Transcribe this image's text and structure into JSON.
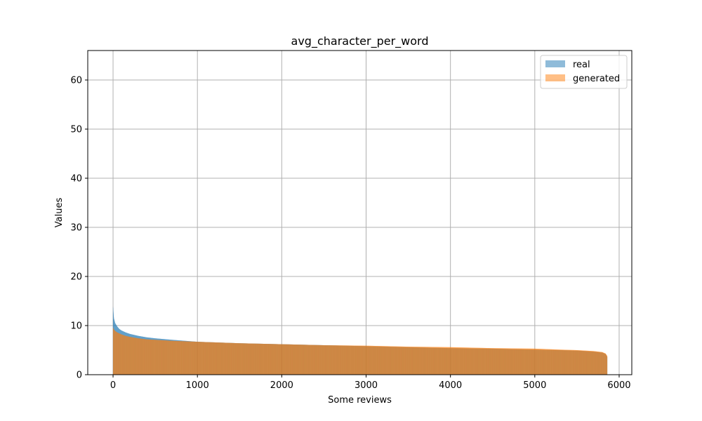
{
  "chart_data": {
    "type": "bar",
    "title": "avg_character_per_word",
    "xlabel": "Some reviews",
    "ylabel": "Values",
    "xlim": [
      -300,
      6150
    ],
    "ylim": [
      0,
      66
    ],
    "x_ticks": [
      0,
      1000,
      2000,
      3000,
      4000,
      5000,
      6000
    ],
    "x_tick_labels": [
      "0",
      "1000",
      "2000",
      "3000",
      "4000",
      "5000",
      "6000"
    ],
    "y_ticks": [
      0,
      10,
      20,
      30,
      40,
      50,
      60
    ],
    "y_tick_labels": [
      "0",
      "10",
      "20",
      "30",
      "40",
      "50",
      "60"
    ],
    "grid": true,
    "legend_position": "top-right",
    "n_reviews": 5860,
    "series": [
      {
        "name": "real",
        "color": "#1f77b4",
        "alpha": 0.5,
        "sorted": "descending",
        "x": [
          0,
          10,
          25,
          50,
          75,
          100,
          150,
          200,
          300,
          400,
          500,
          700,
          1000,
          1500,
          2000,
          2500,
          3000,
          3500,
          4000,
          4500,
          5000,
          5300,
          5500,
          5700,
          5800,
          5840,
          5859
        ],
        "y": [
          13.8,
          11.5,
          10.5,
          9.8,
          9.3,
          9.0,
          8.6,
          8.3,
          7.9,
          7.6,
          7.4,
          7.1,
          6.7,
          6.4,
          6.2,
          6.0,
          5.8,
          5.6,
          5.4,
          5.3,
          5.1,
          5.0,
          4.9,
          4.7,
          4.5,
          4.2,
          3.6
        ]
      },
      {
        "name": "generated",
        "color": "#ff7f0e",
        "alpha": 0.5,
        "sorted": "descending",
        "x": [
          0,
          10,
          25,
          50,
          75,
          100,
          150,
          200,
          300,
          400,
          500,
          700,
          1000,
          1500,
          2000,
          2500,
          3000,
          3500,
          4000,
          4500,
          5000,
          5300,
          5500,
          5700,
          5800,
          5840,
          5859
        ],
        "y": [
          9.6,
          9.2,
          8.9,
          8.6,
          8.4,
          8.2,
          7.9,
          7.7,
          7.4,
          7.2,
          7.1,
          6.9,
          6.7,
          6.4,
          6.2,
          6.0,
          5.9,
          5.7,
          5.6,
          5.4,
          5.3,
          5.1,
          5.0,
          4.8,
          4.6,
          4.3,
          3.8
        ]
      }
    ]
  }
}
